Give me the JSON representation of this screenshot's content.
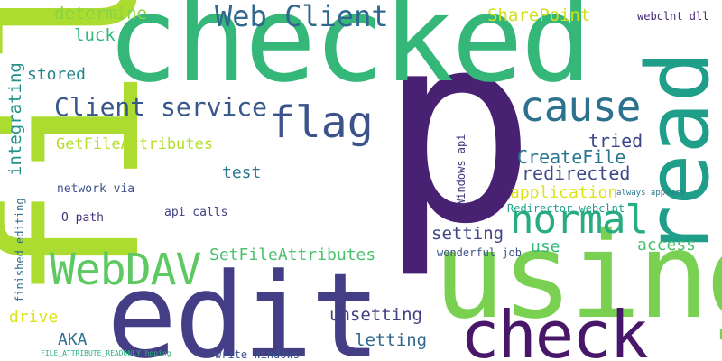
{
  "words": [
    {
      "text": "p",
      "color": "#482173"
    },
    {
      "text": "file",
      "color": "#addc30"
    },
    {
      "text": "checked",
      "color": "#35b779"
    },
    {
      "text": "edit",
      "color": "#433e85"
    },
    {
      "text": "using",
      "color": "#7ad151"
    },
    {
      "text": "read",
      "color": "#1f9e89"
    },
    {
      "text": "check",
      "color": "#481769"
    },
    {
      "text": "normal",
      "color": "#27ad81"
    },
    {
      "text": "WebDAV",
      "color": "#5ec962"
    },
    {
      "text": "flag",
      "color": "#3b528b"
    },
    {
      "text": "cause",
      "color": "#2c728e"
    },
    {
      "text": "Web Client",
      "color": "#31688e"
    },
    {
      "text": "Client service",
      "color": "#38588c"
    },
    {
      "text": "GetFileAttributes",
      "color": "#b5de2b"
    },
    {
      "text": "SharePoint",
      "color": "#d0e11c"
    },
    {
      "text": "determine",
      "color": "#86d549"
    },
    {
      "text": "luck",
      "color": "#35b779"
    },
    {
      "text": "stored",
      "color": "#25848e"
    },
    {
      "text": "integrating",
      "color": "#21918c"
    },
    {
      "text": "tried",
      "color": "#3f4889"
    },
    {
      "text": "CreateFile",
      "color": "#2a788e"
    },
    {
      "text": "redirected",
      "color": "#3e4989"
    },
    {
      "text": "application",
      "color": "#dde318"
    },
    {
      "text": "test",
      "color": "#2a788e"
    },
    {
      "text": "setting",
      "color": "#414487"
    },
    {
      "text": "access",
      "color": "#4ac16d"
    },
    {
      "text": "use",
      "color": "#35b779"
    },
    {
      "text": "SetFileAttributes",
      "color": "#4ac16d"
    },
    {
      "text": "unsetting",
      "color": "#423f85"
    },
    {
      "text": "letting",
      "color": "#31688e"
    },
    {
      "text": "drive",
      "color": "#dde318"
    },
    {
      "text": "AKA",
      "color": "#2d708e"
    },
    {
      "text": "network via",
      "color": "#3b528b"
    },
    {
      "text": "O path",
      "color": "#46327e"
    },
    {
      "text": "api calls",
      "color": "#424186"
    },
    {
      "text": "finished editing",
      "color": "#2e6e8e"
    },
    {
      "text": "Windows api",
      "color": "#453781"
    },
    {
      "text": "Redirector webclnt",
      "color": "#1fa088"
    },
    {
      "text": "webclnt dll",
      "color": "#482878"
    },
    {
      "text": "always appears",
      "color": "#2a788e"
    },
    {
      "text": "wonderful job",
      "color": "#3b528b"
    },
    {
      "text": "write Windows",
      "color": "#3b528b"
    },
    {
      "text": "FILE_ATTRIBUTE_READONLY hoping",
      "color": "#29af7f"
    }
  ]
}
